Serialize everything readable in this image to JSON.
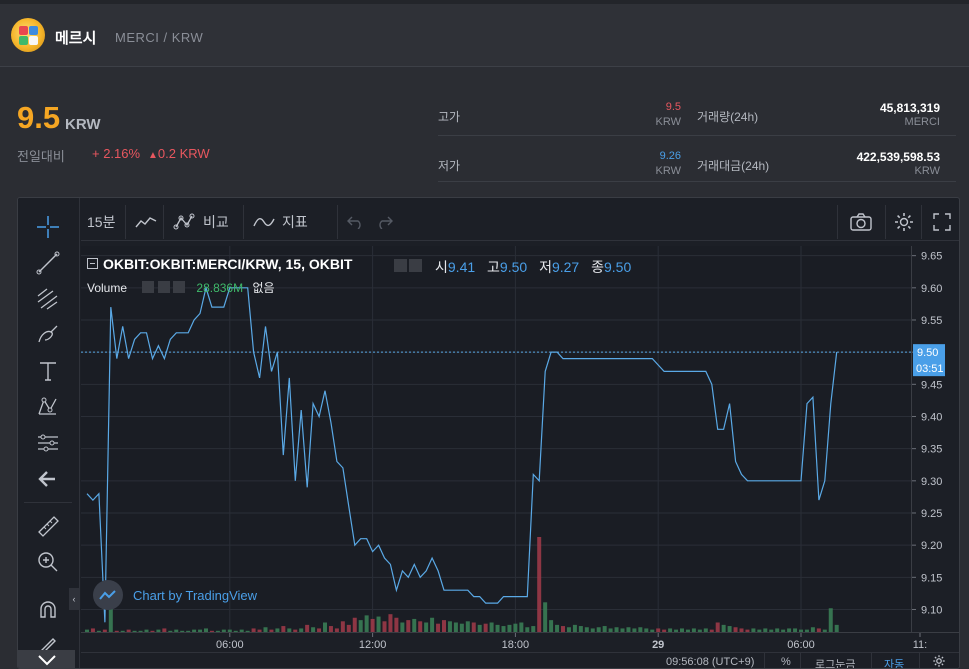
{
  "header": {
    "coin_name": "메르시",
    "pair": "MERCI / KRW",
    "logo_icon": "merci-logo-icon"
  },
  "ticker": {
    "price": "9.5",
    "unit": "KRW",
    "change_label": "전일대비",
    "change_pct": "+ 2.16%",
    "change_amt": "0.2 KRW",
    "up_color": "#e8575f",
    "price_color": "#f5a623"
  },
  "stats": {
    "high_label": "고가",
    "high_value": "9.5",
    "high_unit": "KRW",
    "low_label": "저가",
    "low_value": "9.26",
    "low_unit": "KRW",
    "volume_label": "거래량(24h)",
    "volume_value": "45,813,319",
    "volume_unit": "MERCI",
    "amount_label": "거래대금(24h)",
    "amount_value": "422,539,598.53",
    "amount_unit": "KRW"
  },
  "toolbar": {
    "interval": "15분",
    "compare": "비교",
    "indicators": "지표"
  },
  "legend": {
    "symbol": "OKBIT:OKBIT:MERCI/KRW, 15, OKBIT",
    "o_label": "시",
    "o_value": "9.41",
    "h_label": "고",
    "h_value": "9.50",
    "l_label": "저",
    "l_value": "9.27",
    "c_label": "종",
    "c_value": "9.50",
    "volume_label": "Volume",
    "volume_value": "28.836M",
    "volume_none": "없음"
  },
  "branding": {
    "text": "Chart by TradingView"
  },
  "status": {
    "time": "09:56:08",
    "tz": "(UTC+9)",
    "percent": "%",
    "log": "로그눈금",
    "auto": "자동"
  },
  "chart_data": {
    "type": "line",
    "symbol": "OKBIT:OKBIT:MERCI/KRW",
    "interval": "15",
    "line_color": "#5aa9e6",
    "ylim": [
      9.065,
      9.665
    ],
    "yticks": [
      9.65,
      9.6,
      9.55,
      9.5,
      9.45,
      9.4,
      9.35,
      9.3,
      9.25,
      9.2,
      9.15,
      9.1
    ],
    "last_price": 9.5,
    "last_price_label": "9.50",
    "countdown": "03:51",
    "xticks": [
      {
        "label": "06:00",
        "i": 24
      },
      {
        "label": "12:00",
        "i": 48
      },
      {
        "label": "18:00",
        "i": 72
      },
      {
        "label": "29",
        "i": 96
      },
      {
        "label": "06:00",
        "i": 120
      },
      {
        "label": "11:",
        "i": 140
      }
    ],
    "values": [
      9.28,
      9.27,
      9.28,
      9.08,
      9.57,
      9.49,
      9.54,
      9.49,
      9.52,
      9.53,
      9.53,
      9.49,
      9.51,
      9.49,
      9.52,
      9.53,
      9.53,
      9.53,
      9.55,
      9.56,
      9.6,
      9.57,
      9.57,
      9.57,
      9.6,
      9.6,
      9.6,
      9.6,
      9.5,
      9.46,
      9.54,
      9.47,
      9.5,
      9.34,
      9.46,
      9.3,
      9.41,
      9.29,
      9.42,
      9.4,
      9.44,
      9.39,
      9.33,
      9.32,
      9.26,
      9.2,
      9.21,
      9.21,
      9.19,
      9.2,
      9.18,
      9.17,
      9.13,
      9.16,
      9.15,
      9.17,
      9.15,
      9.16,
      9.18,
      9.16,
      9.13,
      9.13,
      9.13,
      9.13,
      9.13,
      9.12,
      9.12,
      9.11,
      9.11,
      9.11,
      9.12,
      9.12,
      9.12,
      9.12,
      9.12,
      9.31,
      9.3,
      9.47,
      9.5,
      9.5,
      9.49,
      9.49,
      9.49,
      9.49,
      9.49,
      9.49,
      9.49,
      9.49,
      9.49,
      9.49,
      9.49,
      9.49,
      9.49,
      9.49,
      9.49,
      9.49,
      9.48,
      9.47,
      9.47,
      9.47,
      9.47,
      9.47,
      9.47,
      9.47,
      9.47,
      9.45,
      9.38,
      9.38,
      9.42,
      9.33,
      9.31,
      9.3,
      9.3,
      9.3,
      9.3,
      9.3,
      9.3,
      9.3,
      9.3,
      9.3,
      9.3,
      9.42,
      9.43,
      9.27,
      9.3,
      9.42,
      9.5
    ],
    "volume": [
      2,
      3,
      1,
      2,
      40,
      1,
      1,
      2,
      1,
      1,
      2,
      1,
      2,
      3,
      1,
      2,
      1,
      1,
      2,
      2,
      3,
      1,
      1,
      2,
      2,
      1,
      2,
      1,
      3,
      2,
      4,
      2,
      3,
      5,
      3,
      2,
      3,
      6,
      4,
      3,
      8,
      5,
      3,
      9,
      6,
      12,
      10,
      14,
      11,
      13,
      9,
      15,
      12,
      8,
      10,
      11,
      9,
      8,
      12,
      7,
      10,
      9,
      8,
      7,
      9,
      8,
      6,
      7,
      8,
      6,
      5,
      6,
      7,
      8,
      4,
      5,
      80,
      25,
      10,
      6,
      5,
      4,
      6,
      5,
      4,
      3,
      4,
      5,
      3,
      4,
      3,
      4,
      3,
      4,
      3,
      2,
      3,
      2,
      3,
      2,
      3,
      2,
      3,
      2,
      3,
      2,
      8,
      6,
      5,
      4,
      3,
      2,
      3,
      2,
      3,
      2,
      3,
      2,
      3,
      3,
      2,
      2,
      4,
      3,
      2,
      20,
      6
    ]
  }
}
